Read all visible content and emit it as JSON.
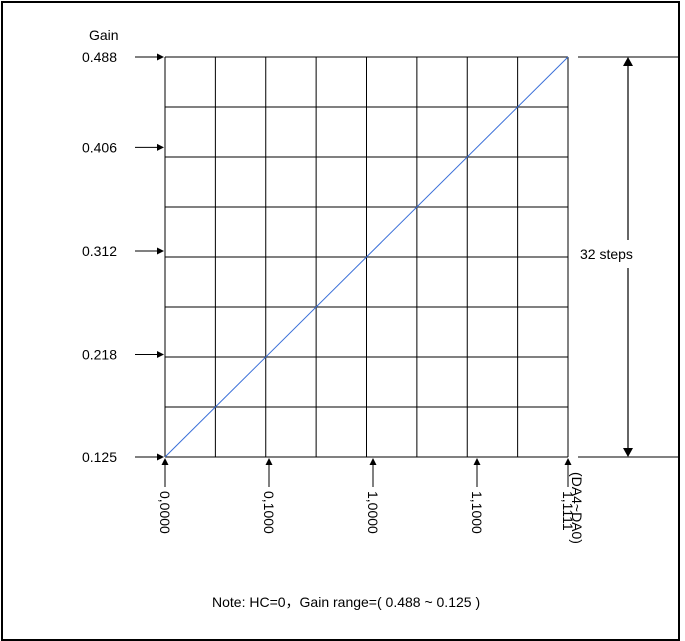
{
  "chart_data": {
    "type": "line",
    "ylabel": "Gain",
    "xlabel": "(DA4~DA0)",
    "y_ticks": [
      "0.488",
      "0.406",
      "0.312",
      "0.218",
      "0.125"
    ],
    "y_tick_values": [
      0.488,
      0.406,
      0.312,
      0.218,
      0.125
    ],
    "x_ticks": [
      "0,0000",
      "0,1000",
      "1,0000",
      "1,1000",
      "1,1111"
    ],
    "x_tick_codes": [
      0,
      8,
      16,
      24,
      31
    ],
    "ylim": [
      0.125,
      0.488
    ],
    "xlim": [
      0,
      31
    ],
    "grid": true,
    "series": [
      {
        "x": [
          0,
          31
        ],
        "values": [
          0.125,
          0.488
        ],
        "color": "#3a6fd8"
      }
    ],
    "annotation": "32 steps",
    "note": "Note: HC=0，Gain range=( 0.488 ~ 0.125 )"
  }
}
